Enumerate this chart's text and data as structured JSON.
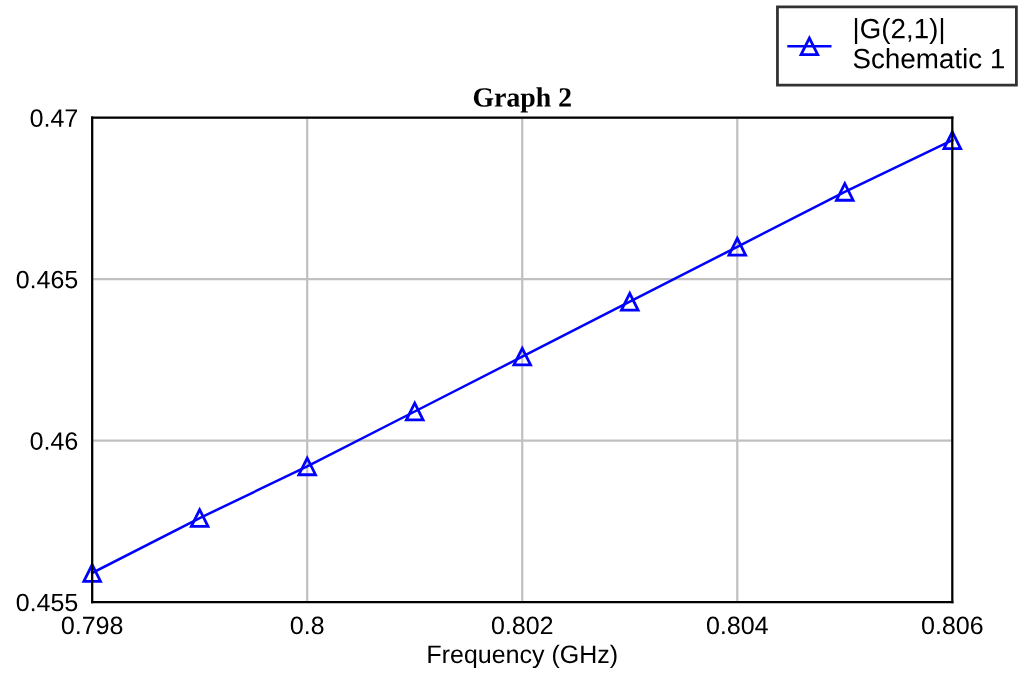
{
  "chart_data": {
    "type": "line",
    "title": "Graph 2",
    "xlabel": "Frequency (GHz)",
    "x": [
      0.798,
      0.799,
      0.8,
      0.801,
      0.802,
      0.803,
      0.804,
      0.805,
      0.806
    ],
    "series": [
      {
        "name": "|G(2,1)|\nSchematic 1",
        "color": "#0000ff",
        "values": [
          0.4559,
          0.4576,
          0.4592,
          0.4609,
          0.4626,
          0.4643,
          0.466,
          0.4677,
          0.4693
        ]
      }
    ],
    "xlim": [
      0.798,
      0.806
    ],
    "xticks": [
      0.798,
      0.8,
      0.802,
      0.804,
      0.806
    ],
    "ylim": [
      0.455,
      0.47
    ],
    "yticks": [
      0.455,
      0.46,
      0.465,
      0.47
    ],
    "grid": true,
    "legend": "top right",
    "marker": "triangle",
    "line_style": "solid"
  }
}
